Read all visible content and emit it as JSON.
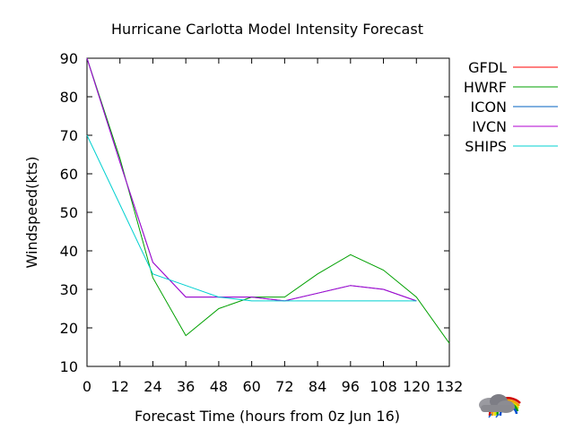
{
  "chart_data": {
    "type": "line",
    "title": "Hurricane Carlotta Model Intensity Forecast",
    "xlabel": "Forecast Time (hours from 0z Jun 16)",
    "ylabel": "Windspeed(kts)",
    "xlim": [
      0,
      132
    ],
    "ylim": [
      10,
      90
    ],
    "xticks": [
      0,
      12,
      24,
      36,
      48,
      60,
      72,
      84,
      96,
      108,
      120,
      132
    ],
    "yticks": [
      10,
      20,
      30,
      40,
      50,
      60,
      70,
      80,
      90
    ],
    "grid": false,
    "legend_position": "outside-right",
    "series": [
      {
        "name": "GFDL",
        "color": "#ff0000",
        "x": [
          0
        ],
        "y": [
          90
        ]
      },
      {
        "name": "HWRF",
        "color": "#00a000",
        "x": [
          0,
          12,
          24,
          36,
          48,
          60,
          72,
          84,
          96,
          108,
          120,
          132
        ],
        "y": [
          90,
          64,
          33,
          18,
          25,
          28,
          28,
          34,
          39,
          35,
          28,
          16
        ]
      },
      {
        "name": "ICON",
        "color": "#0060c0",
        "x": [
          0,
          12,
          24,
          36,
          48,
          60,
          72,
          84,
          96,
          108,
          120
        ],
        "y": [
          90,
          63,
          37,
          28,
          28,
          28,
          27,
          29,
          31,
          30,
          27
        ]
      },
      {
        "name": "IVCN",
        "color": "#b000d0",
        "x": [
          0,
          12,
          24,
          36,
          48,
          60,
          72,
          84,
          96,
          108,
          120
        ],
        "y": [
          90,
          63,
          37,
          28,
          28,
          28,
          27,
          29,
          31,
          30,
          27
        ]
      },
      {
        "name": "SHIPS",
        "color": "#00d0d0",
        "x": [
          0,
          12,
          24,
          36,
          48,
          60,
          72,
          84,
          96,
          108,
          120
        ],
        "y": [
          70,
          52,
          34,
          31,
          28,
          27,
          27,
          27,
          27,
          27,
          27
        ]
      }
    ]
  },
  "logo": {
    "name": "weather-cloud-rainbow-icon"
  }
}
